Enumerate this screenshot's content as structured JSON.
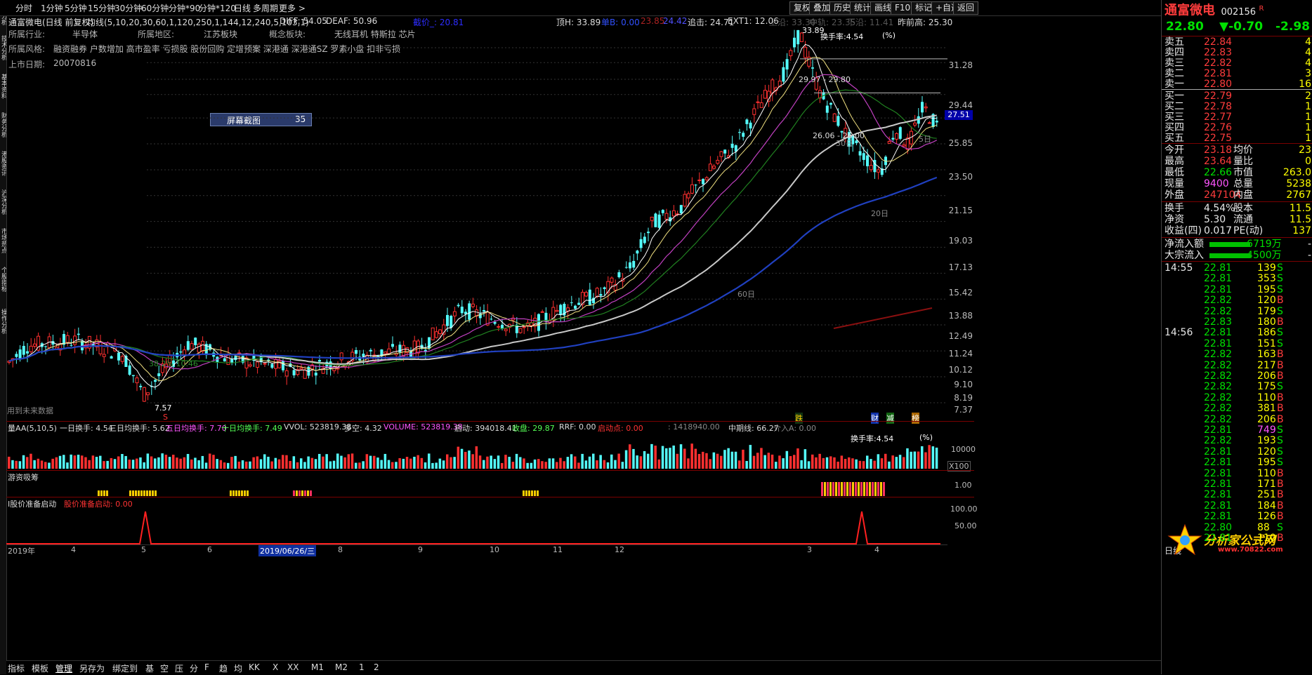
{
  "toolbar": {
    "periods": [
      "分时",
      "1分钟",
      "5分钟",
      "15分钟",
      "30分钟",
      "60分钟",
      "分钟*90",
      "分钟*120",
      "日线",
      "多周期",
      "更多 >"
    ],
    "right_buttons": [
      "复权",
      "叠加",
      "历史",
      "统计",
      "画线",
      "F10",
      "标记",
      "+自选",
      "返回"
    ]
  },
  "left_tabs": [
    "空间分析",
    "技术分析",
    "基本资料",
    "财务分析",
    "港股资讯",
    "沪深分析",
    "市场热点",
    "个股指标",
    "操作分析"
  ],
  "info": {
    "stock_title": "通富微电(日线 前复权)",
    "ma_label": "均线(5,10,20,30,60,1,120,250,1,144,12,240,5,103,1)",
    "diff": "DIFF: 54.05",
    "deaf": "DEAF: 50.96",
    "price_zero": "截价_: 20.81",
    "top_h": "顶H: 33.89",
    "danbi": "单B: 0.00",
    "v1": "23.85",
    "v2": "24.42",
    "zhuiji": "追击: 24.71",
    "ext": "EXT1: 12.06",
    "shangyan": "上沿: 33.30",
    "zhongxian": "中轨: 23.35",
    "xiayan": "下沿: 11.41",
    "prevhigh": "昨前高: 25.30",
    "industry_label": "所属行业:",
    "industry": "半导体",
    "region_label": "所属地区:",
    "region": "江苏板块",
    "concept_label": "概念板块:",
    "concept": "无线耳机 特斯拉 芯片",
    "style_label": "所属风格:",
    "style": "融资融券 户数增加 高市盈率 亏损股 股份回购 定增预案 深港通 深港通SZ 罗素小盘 扣非亏损",
    "listed_label": "上市日期:",
    "listed": "20070816",
    "popup_label": "屏幕截图",
    "popup_value": "35",
    "future_label": "用到未来数据"
  },
  "chart_annotations": {
    "peak": "33.89",
    "turnover_rate": "换手率:4.54",
    "pct": "(%)",
    "range1": "29.97 - 29.80",
    "range2": "26.06 - 26.00",
    "fib": "38.2% 10.46",
    "low": "7.57",
    "ma5": "5日",
    "ma20": "20日",
    "ma30": "30日",
    "ma60": "60日",
    "current_price_tag": "27.51",
    "mark_die": "跌",
    "mark_cai": "财",
    "mark_jian": "减",
    "mark_bang": "榜",
    "mark_s": "S",
    "zuo": "左"
  },
  "y_axis": [
    "31.28",
    "29.44",
    "27.51",
    "25.85",
    "23.50",
    "21.15",
    "19.03",
    "17.13",
    "15.42",
    "13.88",
    "12.49",
    "11.24",
    "10.12",
    "9.10",
    "8.19",
    "7.37"
  ],
  "volume_panel": {
    "title": "量AA(5,10,5)",
    "t1": "一日换手: 4.54",
    "t3": "三日均换手: 5.62",
    "t5": "五日均换手: 7.70",
    "t10": "十日均换手: 7.49",
    "vvol": "VVOL: 523819.38",
    "duokong": "多空: 4.32",
    "volume": "VOLUME: 523819.38",
    "qidong": "启动: 394018.41",
    "shoupan": "收盘: 29.87",
    "rrf": "RRF: 0.00",
    "qidongdian": "启动点: 0.00",
    "v_extra": ": 1418940.00",
    "zhongqi": "中期线: 66.27",
    "jieru": "介入A: 0.00",
    "turnover": "换手率:4.54",
    "pct": "(%)",
    "axis1": "10000",
    "axis2": "X100"
  },
  "youzi_panel": {
    "title": "游资吸筹",
    "axis": "1.00"
  },
  "ready_panel": {
    "title": "I股价准备启动",
    "sub": "股价准备启动: 0.00",
    "axis1": "100.00",
    "axis2": "50.00",
    "axis3": "0.00"
  },
  "x_axis": [
    "2019年",
    "4",
    "5",
    "6",
    "2019/06/26/三",
    "8",
    "9",
    "10",
    "11",
    "12",
    "3",
    "4"
  ],
  "right_panel": {
    "name": "通富微电",
    "code": "002156",
    "r_mark": "R",
    "price": "22.80",
    "change": "▼-0.70",
    "change_pct": "-2.98",
    "asks": [
      {
        "label": "卖五",
        "price": "22.84",
        "vol": "4"
      },
      {
        "label": "卖四",
        "price": "22.83",
        "vol": "4"
      },
      {
        "label": "卖三",
        "price": "22.82",
        "vol": "4"
      },
      {
        "label": "卖二",
        "price": "22.81",
        "vol": "3"
      },
      {
        "label": "卖一",
        "price": "22.80",
        "vol": "16"
      }
    ],
    "bids": [
      {
        "label": "买一",
        "price": "22.79",
        "vol": "2"
      },
      {
        "label": "买二",
        "price": "22.78",
        "vol": "1"
      },
      {
        "label": "买三",
        "price": "22.77",
        "vol": "1"
      },
      {
        "label": "买四",
        "price": "22.76",
        "vol": "1"
      },
      {
        "label": "买五",
        "price": "22.75",
        "vol": "1"
      }
    ],
    "stats": [
      {
        "k1": "今开",
        "v1": "23.18",
        "k2": "均价",
        "v2": "23",
        "c1": "c-red"
      },
      {
        "k1": "最高",
        "v1": "23.64",
        "k2": "量比",
        "v2": "0",
        "c1": "c-red"
      },
      {
        "k1": "最低",
        "v1": "22.66",
        "k2": "市值",
        "v2": "263.0",
        "c1": "c-green"
      },
      {
        "k1": "现量",
        "v1": "9400",
        "k2": "总量",
        "v2": "5238",
        "c1": "c-mag"
      },
      {
        "k1": "外盘",
        "v1": "247104",
        "k2": "内盘",
        "v2": "2767",
        "c1": "c-red"
      }
    ],
    "stats2": [
      {
        "k1": "换手",
        "v1": "4.54%",
        "k2": "股本",
        "v2": "11.5"
      },
      {
        "k1": "净资",
        "v1": "5.30",
        "k2": "流通",
        "v2": "11.5"
      },
      {
        "k1": "收益(四)",
        "v1": "0.017",
        "k2": "PE(动)",
        "v2": "137"
      }
    ],
    "flow": [
      {
        "k": "净流入额",
        "v": "-6719万",
        "s": "-"
      },
      {
        "k": "大宗流入",
        "v": "-4500万",
        "s": "-"
      }
    ],
    "ticks": [
      {
        "t": "14:55",
        "p": "22.81",
        "v": "139",
        "s": "S"
      },
      {
        "t": "",
        "p": "22.81",
        "v": "353",
        "s": "S"
      },
      {
        "t": "",
        "p": "22.81",
        "v": "195",
        "s": "S"
      },
      {
        "t": "",
        "p": "22.82",
        "v": "120",
        "s": "B"
      },
      {
        "t": "",
        "p": "22.82",
        "v": "179",
        "s": "S"
      },
      {
        "t": "",
        "p": "22.83",
        "v": "180",
        "s": "B"
      },
      {
        "t": "14:56",
        "p": "22.81",
        "v": "186",
        "s": "S"
      },
      {
        "t": "",
        "p": "22.81",
        "v": "151",
        "s": "S"
      },
      {
        "t": "",
        "p": "22.82",
        "v": "163",
        "s": "B"
      },
      {
        "t": "",
        "p": "22.82",
        "v": "217",
        "s": "B"
      },
      {
        "t": "",
        "p": "22.82",
        "v": "206",
        "s": "B"
      },
      {
        "t": "",
        "p": "22.82",
        "v": "175",
        "s": "S"
      },
      {
        "t": "",
        "p": "22.82",
        "v": "110",
        "s": "B"
      },
      {
        "t": "",
        "p": "22.82",
        "v": "381",
        "s": "B"
      },
      {
        "t": "",
        "p": "22.82",
        "v": "206",
        "s": "B"
      },
      {
        "t": "",
        "p": "22.81",
        "v": "749",
        "s": "S"
      },
      {
        "t": "",
        "p": "22.82",
        "v": "193",
        "s": "S"
      },
      {
        "t": "",
        "p": "22.81",
        "v": "120",
        "s": "S"
      },
      {
        "t": "",
        "p": "22.81",
        "v": "195",
        "s": "S"
      },
      {
        "t": "",
        "p": "22.81",
        "v": "110",
        "s": "B"
      },
      {
        "t": "",
        "p": "22.81",
        "v": "171",
        "s": "B"
      },
      {
        "t": "",
        "p": "22.81",
        "v": "251",
        "s": "B"
      },
      {
        "t": "",
        "p": "22.81",
        "v": "184",
        "s": "B"
      },
      {
        "t": "",
        "p": "22.81",
        "v": "126",
        "s": "B"
      },
      {
        "t": "",
        "p": "22.80",
        "v": "88",
        "s": "S"
      },
      {
        "t": "",
        "p": "22.81",
        "v": "110",
        "s": "B"
      }
    ],
    "daily_label": "日线"
  },
  "bottom_bar": [
    "指标",
    "模板",
    "管理",
    "另存为",
    "绑定到",
    "基",
    "空",
    "压",
    "分",
    "F",
    "趋",
    "均",
    "KK",
    "X",
    "XX",
    "M1",
    "M2",
    "1",
    "2"
  ],
  "logo": {
    "name": "分析家公式网",
    "url": "www.70822.com"
  }
}
